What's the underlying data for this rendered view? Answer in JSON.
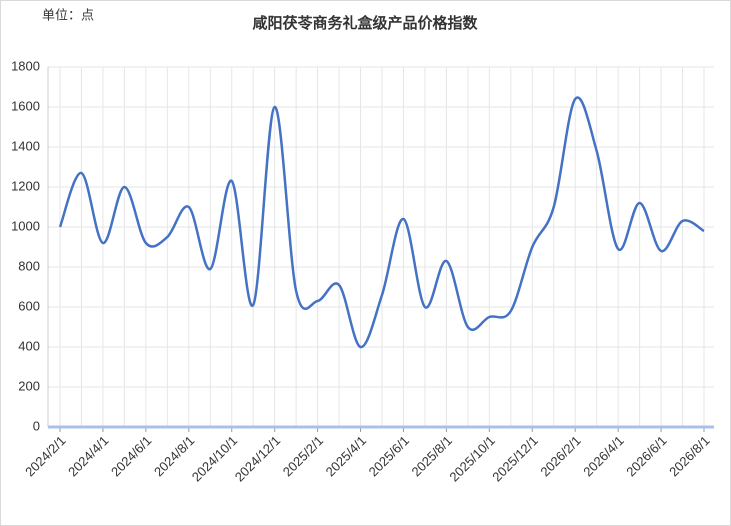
{
  "chart_data": {
    "type": "line",
    "title": "咸阳茯苓商务礼盒级产品价格指数",
    "unit_label": "单位：点",
    "categories": [
      "2024/2/1",
      null,
      "2024/4/1",
      null,
      "2024/6/1",
      null,
      "2024/8/1",
      null,
      "2024/10/1",
      null,
      "2024/12/1",
      null,
      "2025/2/1",
      null,
      "2025/4/1",
      null,
      "2025/6/1",
      null,
      "2025/8/1",
      null,
      "2025/10/1",
      null,
      "2025/12/1",
      null,
      "2026/2/1",
      null,
      "2026/4/1",
      null,
      "2026/6/1",
      null,
      "2026/8/1"
    ],
    "values": [
      1000,
      1270,
      920,
      1200,
      920,
      950,
      1100,
      790,
      1230,
      610,
      1600,
      680,
      630,
      710,
      400,
      660,
      1040,
      600,
      830,
      500,
      550,
      580,
      900,
      1100,
      1640,
      1380,
      890,
      1120,
      880,
      1030,
      980
    ],
    "color": "#4472c4",
    "ylim": [
      0,
      1800
    ],
    "yticks": [
      0,
      200,
      400,
      600,
      800,
      1000,
      1200,
      1400,
      1600,
      1800
    ],
    "grid": true
  }
}
